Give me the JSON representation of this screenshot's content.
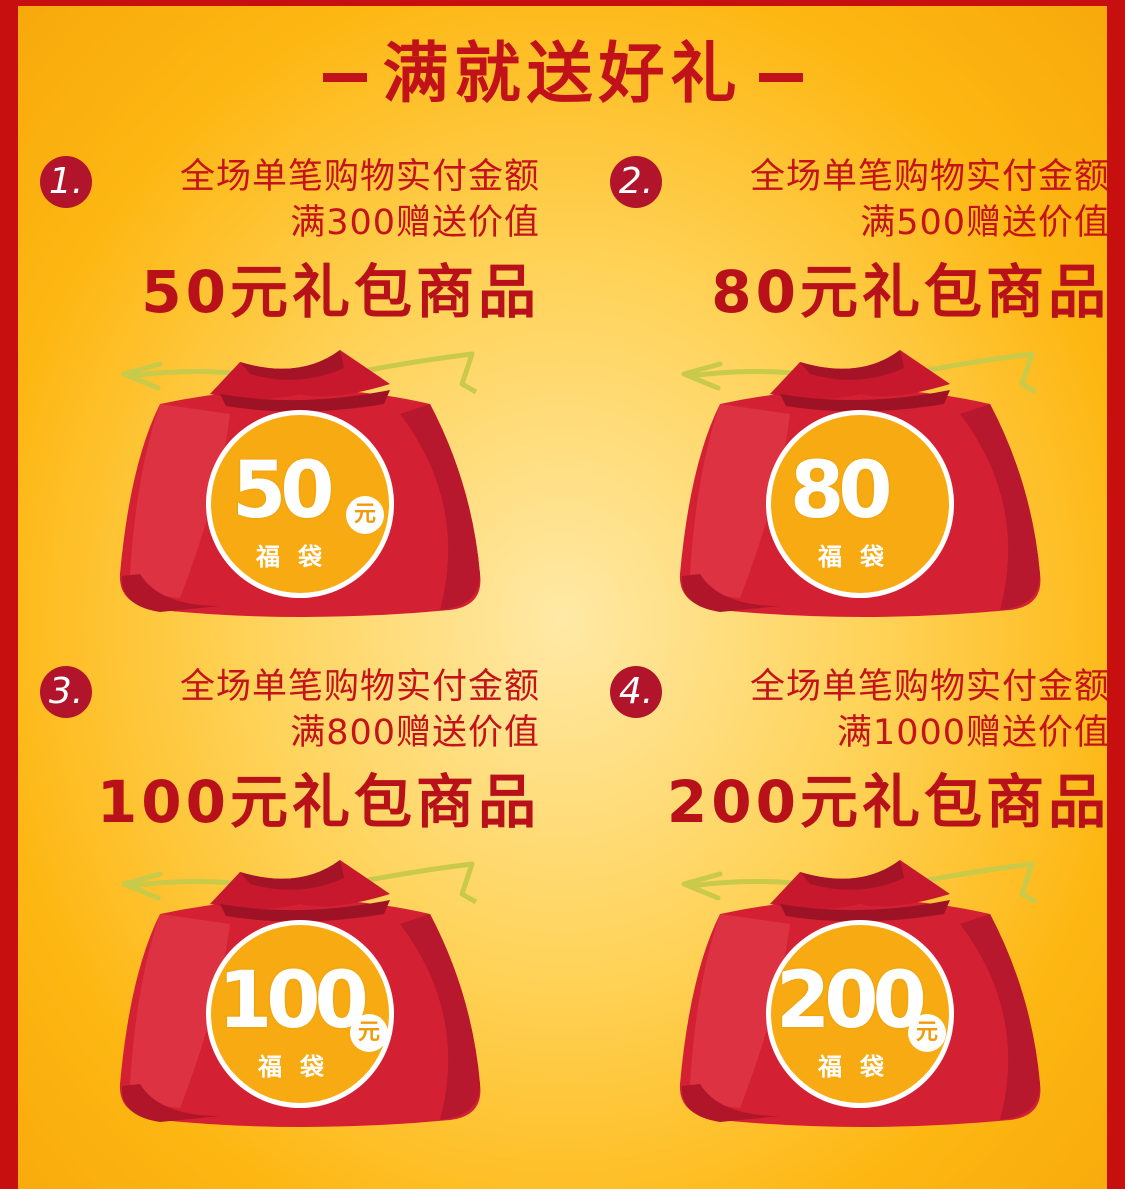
{
  "title": "满就送好礼",
  "colors": {
    "border": "#c80f0f",
    "text": "#c1121a",
    "bag": "#d42033",
    "badge": "#f7aa12"
  },
  "offers": [
    {
      "number": "1.",
      "line1": "全场单笔购物实付金额",
      "line2": "满300赠送价值",
      "reward": "50元礼包商品",
      "badge_value": "50",
      "badge_unit": "元",
      "badge_label": "福袋"
    },
    {
      "number": "2.",
      "line1": "全场单笔购物实付金额",
      "line2": "满500赠送价值",
      "reward": "80元礼包商品",
      "badge_value": "80",
      "badge_unit": "",
      "badge_label": "福袋"
    },
    {
      "number": "3.",
      "line1": "全场单笔购物实付金额",
      "line2": "满800赠送价值",
      "reward": "100元礼包商品",
      "badge_value": "100",
      "badge_unit": "元",
      "badge_label": "福袋"
    },
    {
      "number": "4.",
      "line1": "全场单笔购物实付金额",
      "line2": "满1000赠送价值",
      "reward": "200元礼包商品",
      "badge_value": "200",
      "badge_unit": "元",
      "badge_label": "福袋"
    }
  ]
}
